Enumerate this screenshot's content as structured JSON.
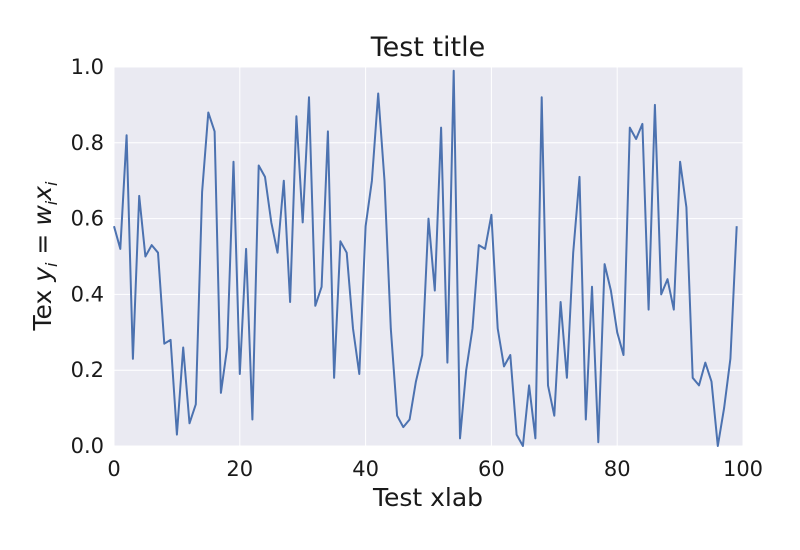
{
  "chart_data": {
    "type": "line",
    "title": "Test title",
    "xlabel": "Test xlab",
    "ylabel": "Tex y_i = w_i x_i",
    "ylabel_parts": {
      "prefix": "Tex ",
      "y": "y",
      "i1": "i",
      "eq": " = ",
      "w": "w",
      "i2": "i",
      "x": "x",
      "i3": "i"
    },
    "xlim": [
      0,
      100
    ],
    "ylim": [
      0.0,
      1.0
    ],
    "xticks": [
      0,
      20,
      40,
      60,
      80,
      100
    ],
    "xtick_labels": [
      "0",
      "20",
      "40",
      "60",
      "80",
      "100"
    ],
    "yticks": [
      0.0,
      0.2,
      0.4,
      0.6,
      0.8,
      1.0
    ],
    "ytick_labels": [
      "0.0",
      "0.2",
      "0.4",
      "0.6",
      "0.8",
      "1.0"
    ],
    "grid": true,
    "style": {
      "plot_background": "#eaeaf2",
      "grid_color": "#ffffff",
      "line_color": "#4c72b0"
    },
    "series": [
      {
        "x": [
          0,
          1,
          2,
          3,
          4,
          5,
          6,
          7,
          8,
          9,
          10,
          11,
          12,
          13,
          14,
          15,
          16,
          17,
          18,
          19,
          20,
          21,
          22,
          23,
          24,
          25,
          26,
          27,
          28,
          29,
          30,
          31,
          32,
          33,
          34,
          35,
          36,
          37,
          38,
          39,
          40,
          41,
          42,
          43,
          44,
          45,
          46,
          47,
          48,
          49,
          50,
          51,
          52,
          53,
          54,
          55,
          56,
          57,
          58,
          59,
          60,
          61,
          62,
          63,
          64,
          65,
          66,
          67,
          68,
          69,
          70,
          71,
          72,
          73,
          74,
          75,
          76,
          77,
          78,
          79,
          80,
          81,
          82,
          83,
          84,
          85,
          86,
          87,
          88,
          89,
          90,
          91,
          92,
          93,
          94,
          95,
          96,
          97,
          98,
          99
        ],
        "values": [
          0.58,
          0.52,
          0.82,
          0.23,
          0.66,
          0.5,
          0.53,
          0.51,
          0.27,
          0.28,
          0.03,
          0.26,
          0.06,
          0.11,
          0.67,
          0.88,
          0.83,
          0.14,
          0.26,
          0.75,
          0.19,
          0.52,
          0.07,
          0.74,
          0.71,
          0.59,
          0.51,
          0.7,
          0.38,
          0.87,
          0.59,
          0.92,
          0.37,
          0.42,
          0.83,
          0.18,
          0.54,
          0.51,
          0.31,
          0.19,
          0.58,
          0.7,
          0.93,
          0.7,
          0.31,
          0.08,
          0.05,
          0.07,
          0.17,
          0.24,
          0.6,
          0.41,
          0.84,
          0.22,
          0.99,
          0.02,
          0.2,
          0.31,
          0.53,
          0.52,
          0.61,
          0.31,
          0.21,
          0.24,
          0.03,
          0.0,
          0.16,
          0.02,
          0.92,
          0.16,
          0.08,
          0.38,
          0.18,
          0.51,
          0.71,
          0.07,
          0.42,
          0.01,
          0.48,
          0.41,
          0.3,
          0.24,
          0.84,
          0.81,
          0.85,
          0.36,
          0.9,
          0.4,
          0.44,
          0.36,
          0.75,
          0.63,
          0.18,
          0.16,
          0.22,
          0.17,
          0.0,
          0.1,
          0.23,
          0.58
        ]
      }
    ]
  }
}
